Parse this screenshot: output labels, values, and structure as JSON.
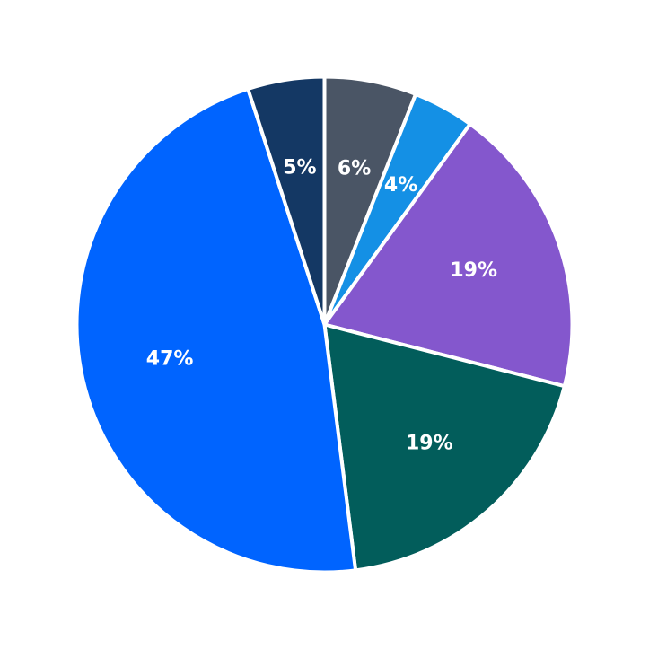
{
  "chart_data": {
    "type": "pie",
    "start_angle_deg": 90,
    "direction": "clockwise",
    "legend": "none",
    "slices": [
      {
        "value": 6,
        "label": "6%",
        "color": "#4a5565"
      },
      {
        "value": 4,
        "label": "4%",
        "color": "#1490e5"
      },
      {
        "value": 19,
        "label": "19%",
        "color": "#8457cd"
      },
      {
        "value": 19,
        "label": "19%",
        "color": "#025d5b"
      },
      {
        "value": 47,
        "label": "47%",
        "color": "#0064ff"
      },
      {
        "value": 5,
        "label": "5%",
        "color": "#143864"
      }
    ]
  }
}
